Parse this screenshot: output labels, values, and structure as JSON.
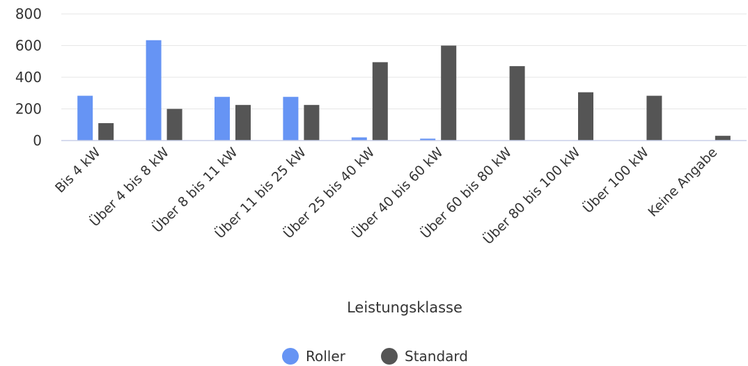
{
  "chart_data": {
    "type": "bar",
    "categories": [
      "Bis 4 kW",
      "Über 4 bis 8 kW",
      "Über 8 bis 11 kW",
      "Über 11 bis 25 kW",
      "Über 25 bis 40 kW",
      "Über 40 bis 60 kW",
      "Über 60 bis 80 kW",
      "Über 80 bis 100 kW",
      "Über 100 kW",
      "Keine Angabe"
    ],
    "series": [
      {
        "name": "Roller",
        "color": "#6694F4",
        "values": [
          283,
          634,
          276,
          276,
          20,
          12,
          0,
          0,
          0,
          0
        ]
      },
      {
        "name": "Standard",
        "color": "#555555",
        "values": [
          110,
          200,
          225,
          225,
          495,
          600,
          470,
          305,
          283,
          30
        ]
      }
    ],
    "xlabel": "Leistungsklasse",
    "ylabel": "",
    "ylim": [
      0,
      800
    ],
    "yticks": [
      0,
      200,
      400,
      600,
      800
    ],
    "grid": true,
    "legend_position": "bottom-center"
  }
}
